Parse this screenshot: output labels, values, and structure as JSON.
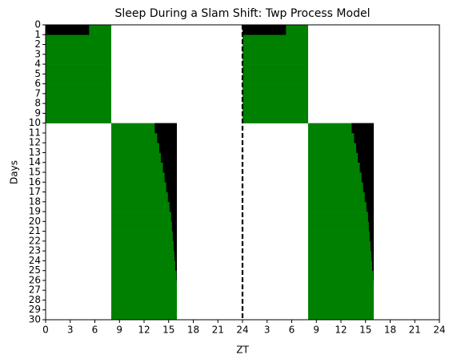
{
  "chart_data": {
    "type": "actogram",
    "title": "Sleep During a Slam Shift: Twp Process Model",
    "xlabel": "ZT",
    "ylabel": "Days",
    "light_color": "#008000",
    "sleep_color": "#000000",
    "double_plot_at": 24,
    "light": [
      [
        0,
        8
      ],
      [
        0,
        8
      ],
      [
        0,
        8
      ],
      [
        0,
        8
      ],
      [
        0,
        8
      ],
      [
        0,
        8
      ],
      [
        0,
        8
      ],
      [
        0,
        8
      ],
      [
        0,
        8
      ],
      [
        0,
        8
      ],
      [
        8,
        16
      ],
      [
        8,
        16
      ],
      [
        8,
        16
      ],
      [
        8,
        16
      ],
      [
        8,
        16
      ],
      [
        8,
        16
      ],
      [
        8,
        16
      ],
      [
        8,
        16
      ],
      [
        8,
        16
      ],
      [
        8,
        16
      ],
      [
        8,
        16
      ],
      [
        8,
        16
      ],
      [
        8,
        16
      ],
      [
        8,
        16
      ],
      [
        8,
        16
      ],
      [
        8,
        16
      ],
      [
        8,
        16
      ],
      [
        8,
        16
      ],
      [
        8,
        16
      ],
      [
        8,
        16
      ]
    ],
    "sleep": [
      [
        0,
        5.3
      ],
      null,
      null,
      null,
      null,
      null,
      null,
      null,
      null,
      null,
      [
        13.3,
        16
      ],
      [
        13.6,
        16
      ],
      [
        13.85,
        16
      ],
      [
        14.05,
        16
      ],
      [
        14.3,
        16
      ],
      [
        14.5,
        16
      ],
      [
        14.7,
        16
      ],
      [
        14.9,
        16
      ],
      [
        15.1,
        16
      ],
      [
        15.3,
        16
      ],
      [
        15.4,
        16
      ],
      [
        15.5,
        16
      ],
      [
        15.6,
        16
      ],
      [
        15.7,
        16
      ],
      [
        15.8,
        16
      ],
      [
        15.95,
        16
      ],
      null,
      null,
      null,
      null
    ],
    "xlim": [
      0,
      48
    ],
    "xticks": [
      0,
      3,
      6,
      9,
      12,
      15,
      18,
      21,
      24,
      {
        "value": 27,
        "label": "3"
      },
      {
        "value": 30,
        "label": "6"
      },
      {
        "value": 33,
        "label": "9"
      },
      {
        "value": 36,
        "label": "12"
      },
      {
        "value": 39,
        "label": "15"
      },
      {
        "value": 42,
        "label": "18"
      },
      {
        "value": 45,
        "label": "21"
      },
      {
        "value": 48,
        "label": "24"
      }
    ],
    "ylim": [
      0,
      30
    ],
    "y_inverted": true,
    "yticks": [
      0,
      1,
      2,
      3,
      4,
      5,
      6,
      7,
      8,
      9,
      10,
      11,
      12,
      13,
      14,
      15,
      16,
      17,
      18,
      19,
      20,
      21,
      22,
      23,
      24,
      25,
      26,
      27,
      28,
      29,
      30
    ]
  }
}
